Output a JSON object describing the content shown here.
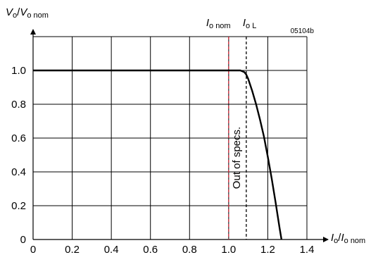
{
  "chart_data": {
    "type": "line",
    "ylabel": {
      "main": "V",
      "main_sub": "o",
      "den": "V",
      "den_sub": "o nom"
    },
    "xlabel": {
      "main": "I",
      "main_sub": "o",
      "den": "I",
      "den_sub": "o nom"
    },
    "figure_code": "05104b",
    "xlim": [
      0,
      1.4
    ],
    "ylim": [
      0,
      1.2
    ],
    "xticks": [
      0,
      0.2,
      0.4,
      0.6,
      0.8,
      1.0,
      1.2,
      1.4
    ],
    "xtick_labels": [
      "0",
      "0.2",
      "0.4",
      "0.6",
      "0.8",
      "1.0",
      "1.2",
      "1.4"
    ],
    "yticks": [
      0,
      0.2,
      0.4,
      0.6,
      0.8,
      1.0
    ],
    "ytick_labels": [
      "0",
      "0.2",
      "0.4",
      "0.6",
      "0.8",
      "1.0"
    ],
    "grid": true,
    "series": [
      {
        "color": "#000000",
        "x": [
          0,
          1.06,
          1.08,
          1.09,
          1.1,
          1.12,
          1.14,
          1.16,
          1.18,
          1.2,
          1.22,
          1.24,
          1.26,
          1.27
        ],
        "y": [
          1.0,
          1.0,
          0.99,
          0.975,
          0.95,
          0.88,
          0.8,
          0.71,
          0.61,
          0.49,
          0.36,
          0.22,
          0.07,
          0.0
        ]
      }
    ],
    "vlines": [
      {
        "x": 1.0,
        "color": "#cc2233",
        "style": "dashed",
        "label": "I",
        "label_sub": "o nom"
      },
      {
        "x": 1.09,
        "color": "#000000",
        "style": "dashed",
        "label": "I",
        "label_sub": "o L"
      }
    ],
    "annotation": {
      "text": "Out of specs.",
      "x": 1.04,
      "y": 0.4
    }
  }
}
